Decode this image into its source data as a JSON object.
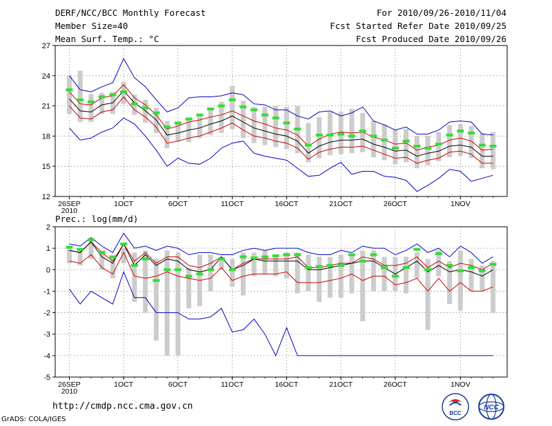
{
  "header": {
    "title": "DERF/NCC/BCC Monthly Forecast",
    "member_size": "Member Size=40",
    "variable": "Mean Surf. Temp.: °C",
    "forecast_period": "For 2010/09/26-2010/11/04",
    "fcst_started": "Fcst Started Refer Date 2010/09/25",
    "fcst_produced": "Fcst Produced Date 2010/09/26"
  },
  "footer": {
    "url": "http://cmdp.ncc.cma.gov.cn",
    "credit": "GrADS: COLA/IGES",
    "logo_bcc_text": "BCC",
    "logo_ncc_text": "NCC"
  },
  "colors": {
    "envelope": "#0000cc",
    "spread": "#cc0000",
    "mean": "#000000",
    "box": "#cccccc",
    "observed": "#33dd33",
    "grid": "#888888"
  },
  "chart_data": [
    {
      "type": "line",
      "title": "Mean Surf. Temp.: °C",
      "ylim": [
        12,
        27
      ],
      "yticks": [
        12,
        15,
        18,
        21,
        24,
        27
      ],
      "xtick_labels": [
        "26SEP",
        "1OCT",
        "6OCT",
        "11OCT",
        "16OCT",
        "21OCT",
        "26OCT",
        "1NOV"
      ],
      "xtick_year": "2010",
      "xtick_days": [
        0,
        5,
        10,
        15,
        20,
        25,
        30,
        36
      ],
      "x_days": [
        0,
        1,
        2,
        3,
        4,
        5,
        6,
        7,
        8,
        9,
        10,
        11,
        12,
        13,
        14,
        15,
        16,
        17,
        18,
        19,
        20,
        21,
        22,
        23,
        24,
        25,
        26,
        27,
        28,
        29,
        30,
        31,
        32,
        33,
        34,
        35,
        36,
        37,
        38,
        39
      ],
      "series": [
        {
          "name": "max",
          "values": [
            18.8,
            17.6,
            17.8,
            18.4,
            18.8,
            19.8,
            19.2,
            18.0,
            16.6,
            15.0,
            15.8,
            15.3,
            15.2,
            15.8,
            16.8,
            17.3,
            17.5,
            16.3,
            16.0,
            15.8,
            15.6,
            14.8,
            14.0,
            14.1,
            14.8,
            15.4,
            14.2,
            14.5,
            14.5,
            14.0,
            13.9,
            13.6,
            12.5,
            13.1,
            13.8,
            14.7,
            14.5,
            13.5,
            13.8,
            14.1
          ]
        },
        {
          "name": "p_high",
          "values": [
            24.0,
            22.6,
            22.4,
            22.9,
            23.3,
            25.7,
            23.8,
            22.9,
            21.6,
            20.4,
            20.8,
            21.8,
            21.9,
            21.9,
            22.0,
            22.3,
            22.1,
            21.2,
            21.1,
            20.6,
            20.6,
            20.0,
            19.7,
            20.4,
            20.5,
            20.0,
            20.3,
            20.9,
            19.5,
            19.1,
            18.6,
            18.9,
            18.2,
            18.2,
            18.6,
            19.4,
            19.5,
            19.4,
            18.2,
            18.1
          ]
        },
        {
          "name": "spread_high",
          "values": [
            22.4,
            21.2,
            21.1,
            21.8,
            22.0,
            23.1,
            21.8,
            21.1,
            20.1,
            18.7,
            19.0,
            19.4,
            19.6,
            19.9,
            20.1,
            20.5,
            20.0,
            19.5,
            19.2,
            18.8,
            18.6,
            18.1,
            17.0,
            17.7,
            18.2,
            18.4,
            18.3,
            18.4,
            17.9,
            17.6,
            17.2,
            17.3,
            16.6,
            16.9,
            17.1,
            17.6,
            17.8,
            17.5,
            16.6,
            16.7
          ]
        },
        {
          "name": "mean",
          "values": [
            21.7,
            20.5,
            20.4,
            21.1,
            21.3,
            22.5,
            21.3,
            20.5,
            19.6,
            18.1,
            18.3,
            18.6,
            18.8,
            19.2,
            19.5,
            20.0,
            19.4,
            18.8,
            18.5,
            18.2,
            18.0,
            17.5,
            16.3,
            17.0,
            17.4,
            17.6,
            17.6,
            17.7,
            17.2,
            16.9,
            16.5,
            16.6,
            16.0,
            16.3,
            16.5,
            17.0,
            17.1,
            16.9,
            16.0,
            16.0
          ]
        },
        {
          "name": "spread_low",
          "values": [
            21.0,
            19.8,
            19.7,
            20.4,
            20.6,
            21.9,
            20.6,
            19.9,
            18.9,
            17.3,
            17.5,
            17.8,
            18.0,
            18.4,
            18.8,
            19.3,
            18.6,
            18.0,
            17.8,
            17.5,
            17.3,
            16.8,
            15.7,
            16.4,
            16.7,
            16.9,
            16.9,
            17.0,
            16.6,
            16.2,
            15.8,
            15.9,
            15.3,
            15.6,
            15.8,
            16.4,
            16.5,
            16.2,
            15.3,
            15.3
          ]
        }
      ],
      "boxes_low": [
        20.2,
        19.4,
        19.4,
        20.2,
        20.2,
        21.2,
        20.1,
        19.3,
        18.3,
        16.8,
        17.5,
        17.4,
        17.8,
        18.1,
        18.3,
        18.7,
        17.8,
        17.3,
        17.1,
        16.9,
        16.7,
        16.3,
        15.4,
        15.8,
        16.1,
        16.2,
        16.3,
        16.4,
        15.9,
        15.6,
        15.2,
        15.4,
        14.8,
        15.1,
        15.5,
        15.9,
        16.0,
        15.8,
        14.8,
        14.7
      ],
      "boxes_high": [
        24.0,
        24.5,
        22.2,
        22.3,
        22.4,
        23.4,
        22.1,
        21.6,
        20.8,
        19.5,
        19.4,
        19.6,
        20.2,
        20.8,
        21.4,
        23.0,
        21.5,
        20.9,
        20.9,
        21.0,
        20.9,
        21.0,
        19.3,
        19.9,
        20.4,
        20.4,
        20.7,
        20.3,
        19.5,
        19.2,
        18.6,
        18.7,
        18.0,
        18.0,
        18.4,
        19.1,
        19.2,
        19.0,
        18.3,
        18.4
      ],
      "observed": [
        22.6,
        21.6,
        21.4,
        21.9,
        22.1,
        22.4,
        21.2,
        20.8,
        20.3,
        18.9,
        19.3,
        19.7,
        20.1,
        20.7,
        21.0,
        21.6,
        20.9,
        20.6,
        20.1,
        19.8,
        19.3,
        18.7,
        17.1,
        18.1,
        18.1,
        18.2,
        18.0,
        18.5,
        18.0,
        17.6,
        16.8,
        17.5,
        17.0,
        16.8,
        17.2,
        18.1,
        18.5,
        18.3,
        17.1,
        17.0
      ]
    },
    {
      "type": "line",
      "title": "Prec.: log(mm/d)",
      "ylim": [
        -5,
        2
      ],
      "yticks": [
        -5,
        -4,
        -3,
        -2,
        -1,
        0,
        1,
        2
      ],
      "xtick_labels": [
        "26SEP",
        "1OCT",
        "6OCT",
        "11OCT",
        "16OCT",
        "21OCT",
        "26OCT",
        "1NOV"
      ],
      "xtick_year": "2010",
      "xtick_days": [
        0,
        5,
        10,
        15,
        20,
        25,
        30,
        36
      ],
      "x_days": [
        0,
        1,
        2,
        3,
        4,
        5,
        6,
        7,
        8,
        9,
        10,
        11,
        12,
        13,
        14,
        15,
        16,
        17,
        18,
        19,
        20,
        21,
        22,
        23,
        24,
        25,
        26,
        27,
        28,
        29,
        30,
        31,
        32,
        33,
        34,
        35,
        36,
        37,
        38,
        39
      ],
      "series": [
        {
          "name": "min",
          "values": [
            -0.9,
            -1.6,
            -1.0,
            -1.3,
            -1.6,
            -0.1,
            -1.3,
            -1.3,
            -2.0,
            -2.0,
            -2.0,
            -2.3,
            -2.3,
            -2.2,
            -1.8,
            -2.9,
            -2.8,
            -2.3,
            -3.0,
            -4.0,
            -2.7,
            -4.0,
            -4.0,
            -4.0,
            -4.0,
            -4.0,
            -4.0,
            -4.0,
            -4.0,
            -4.0,
            -4.0,
            -4.0,
            -4.0,
            -4.0,
            -4.0,
            -4.0,
            -4.0,
            -4.0,
            -4.0,
            -4.0
          ]
        },
        {
          "name": "max",
          "values": [
            1.2,
            1.1,
            1.5,
            1.1,
            0.8,
            1.7,
            1.0,
            1.1,
            0.9,
            1.1,
            1.0,
            0.7,
            0.8,
            0.8,
            0.7,
            0.7,
            0.9,
            1.0,
            0.9,
            1.0,
            1.0,
            1.0,
            0.8,
            0.7,
            0.7,
            0.9,
            0.8,
            1.1,
            1.0,
            1.0,
            0.7,
            0.9,
            1.2,
            0.8,
            1.0,
            0.6,
            1.1,
            0.8,
            0.3,
            0.6
          ]
        },
        {
          "name": "spread_high",
          "values": [
            0.9,
            0.8,
            1.3,
            0.8,
            0.4,
            1.2,
            0.4,
            0.8,
            0.3,
            0.6,
            0.6,
            0.2,
            0.1,
            0.3,
            0.6,
            0.0,
            0.3,
            0.5,
            0.5,
            0.5,
            0.5,
            0.6,
            0.1,
            0.1,
            0.2,
            0.3,
            0.3,
            0.6,
            0.5,
            0.2,
            0.2,
            0.3,
            0.6,
            0.1,
            0.4,
            0.1,
            0.3,
            0.2,
            0.0,
            0.3
          ]
        },
        {
          "name": "mean",
          "values": [
            0.9,
            0.8,
            1.3,
            0.6,
            0.3,
            1.2,
            0.2,
            0.7,
            0.2,
            0.5,
            0.4,
            0.0,
            -0.1,
            0.0,
            0.6,
            0.0,
            0.2,
            0.5,
            0.4,
            0.4,
            0.4,
            0.4,
            0.0,
            0.0,
            0.1,
            0.2,
            0.3,
            0.4,
            0.4,
            0.1,
            -0.2,
            0.1,
            0.4,
            -0.1,
            0.2,
            -0.1,
            0.0,
            -0.1,
            -0.3,
            0.0
          ]
        },
        {
          "name": "spread_low",
          "values": [
            0.4,
            0.3,
            0.7,
            0.1,
            -0.2,
            0.8,
            -0.3,
            -0.4,
            -0.3,
            -0.1,
            -0.3,
            -0.4,
            -0.5,
            -0.4,
            0.1,
            -0.5,
            -0.3,
            -0.2,
            -0.2,
            -0.2,
            -0.1,
            -0.6,
            -0.6,
            -0.6,
            -0.5,
            -0.4,
            -0.2,
            -0.5,
            -0.3,
            -0.3,
            -0.7,
            -0.6,
            -0.4,
            -1.0,
            -0.4,
            -1.0,
            -0.6,
            -1.0,
            -1.0,
            -0.8
          ]
        }
      ],
      "boxes_low": [
        0.3,
        0.2,
        0.5,
        0.0,
        -0.4,
        0.3,
        -1.5,
        -2.0,
        -3.3,
        -4.0,
        -4.0,
        -1.8,
        -1.7,
        -1.0,
        0.0,
        -0.8,
        -1.2,
        -0.3,
        -0.2,
        -0.3,
        -0.4,
        -1.1,
        -1.0,
        -1.5,
        -1.3,
        -1.3,
        -1.1,
        -2.4,
        -1.0,
        -1.0,
        -1.0,
        -1.1,
        -0.4,
        -2.8,
        -0.3,
        -1.6,
        -1.9,
        -1.0,
        -1.0,
        -2.0
      ],
      "boxes_high": [
        1.1,
        1.0,
        1.4,
        0.9,
        0.6,
        1.0,
        0.8,
        0.9,
        0.5,
        0.9,
        0.8,
        0.1,
        0.7,
        0.7,
        0.6,
        0.5,
        0.8,
        0.8,
        0.9,
        0.7,
        0.8,
        0.8,
        0.7,
        0.6,
        0.6,
        0.7,
        0.7,
        0.9,
        0.9,
        0.6,
        0.6,
        0.6,
        0.8,
        0.5,
        0.9,
        0.4,
        0.9,
        0.5,
        0.2,
        0.4
      ],
      "observed": [
        1.05,
        0.95,
        1.4,
        0.8,
        0.6,
        1.2,
        0.2,
        0.5,
        -0.5,
        0.0,
        0.0,
        -0.3,
        -0.2,
        0.0,
        0.5,
        0.0,
        0.6,
        0.55,
        0.6,
        0.65,
        0.7,
        0.7,
        0.1,
        0.15,
        0.2,
        0.2,
        0.7,
        0.4,
        0.7,
        0.1,
        -0.3,
        0.1,
        0.95,
        0.0,
        0.75,
        0.2,
        -0.05,
        0.1,
        -0.05,
        0.25
      ]
    }
  ]
}
